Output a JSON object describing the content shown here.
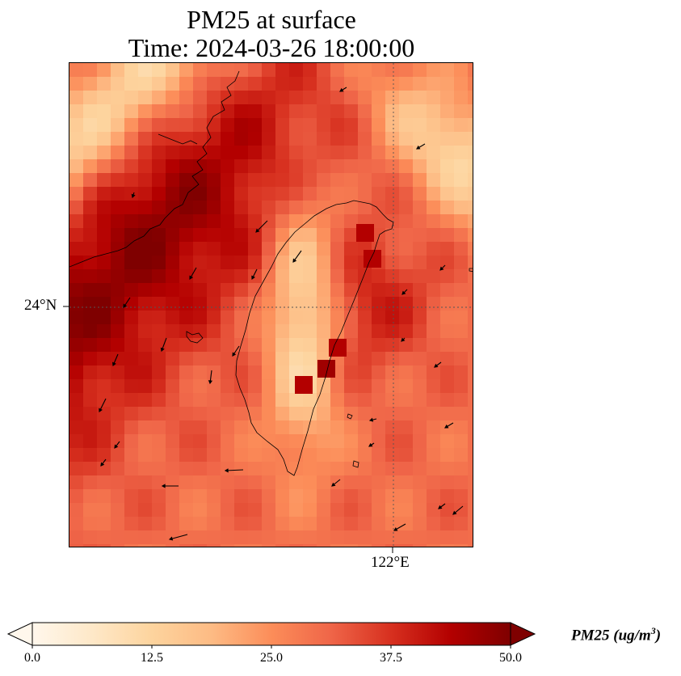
{
  "title": {
    "line1": "PM25 at surface",
    "line2": "Time: 2024-03-26 18:00:00"
  },
  "map": {
    "gridline_latitude_label": "24°N",
    "gridline_longitude_label": "122°E",
    "colormap": "OrRd",
    "coastline_color": "#000000"
  },
  "colorbar": {
    "ticks": [
      "0.0",
      "12.5",
      "25.0",
      "37.5",
      "50.0"
    ],
    "label_main": "PM25 (ug/m",
    "label_exponent": "3",
    "label_close": ")",
    "min": 0,
    "max": 50,
    "extend": "both",
    "colors": [
      "#fff7ec",
      "#fee8c8",
      "#fdd49e",
      "#fdbb84",
      "#fc8d59",
      "#ef6548",
      "#d7301f",
      "#b30000",
      "#7f0000"
    ]
  }
}
